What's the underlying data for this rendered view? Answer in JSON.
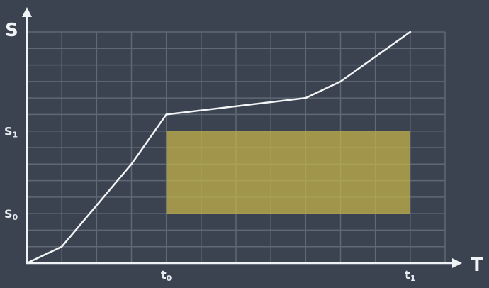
{
  "chart_data": {
    "type": "line",
    "x_axis_label": "T",
    "y_axis_label": "S",
    "x_tick_labels": [
      {
        "base": "t",
        "sub": "0",
        "at": 4
      },
      {
        "base": "t",
        "sub": "1",
        "at": 11
      }
    ],
    "y_tick_labels": [
      {
        "base": "S",
        "sub": "0",
        "at": 3
      },
      {
        "base": "S",
        "sub": "1",
        "at": 8
      }
    ],
    "xlim": [
      0,
      12
    ],
    "ylim": [
      0,
      14
    ],
    "grid": true,
    "series": [
      {
        "x": [
          0,
          1,
          3,
          4,
          8,
          9,
          11
        ],
        "y": [
          0,
          1,
          6,
          9,
          10,
          11,
          14
        ],
        "color": "#f2f4f6"
      }
    ],
    "highlight_region": {
      "x": [
        4,
        11
      ],
      "y": [
        3,
        8
      ],
      "color": "#c8b548",
      "opacity": 0.72
    },
    "background": "#3b4350",
    "grid_color": "#5f6875",
    "axis_color": "#f0f3f6"
  }
}
